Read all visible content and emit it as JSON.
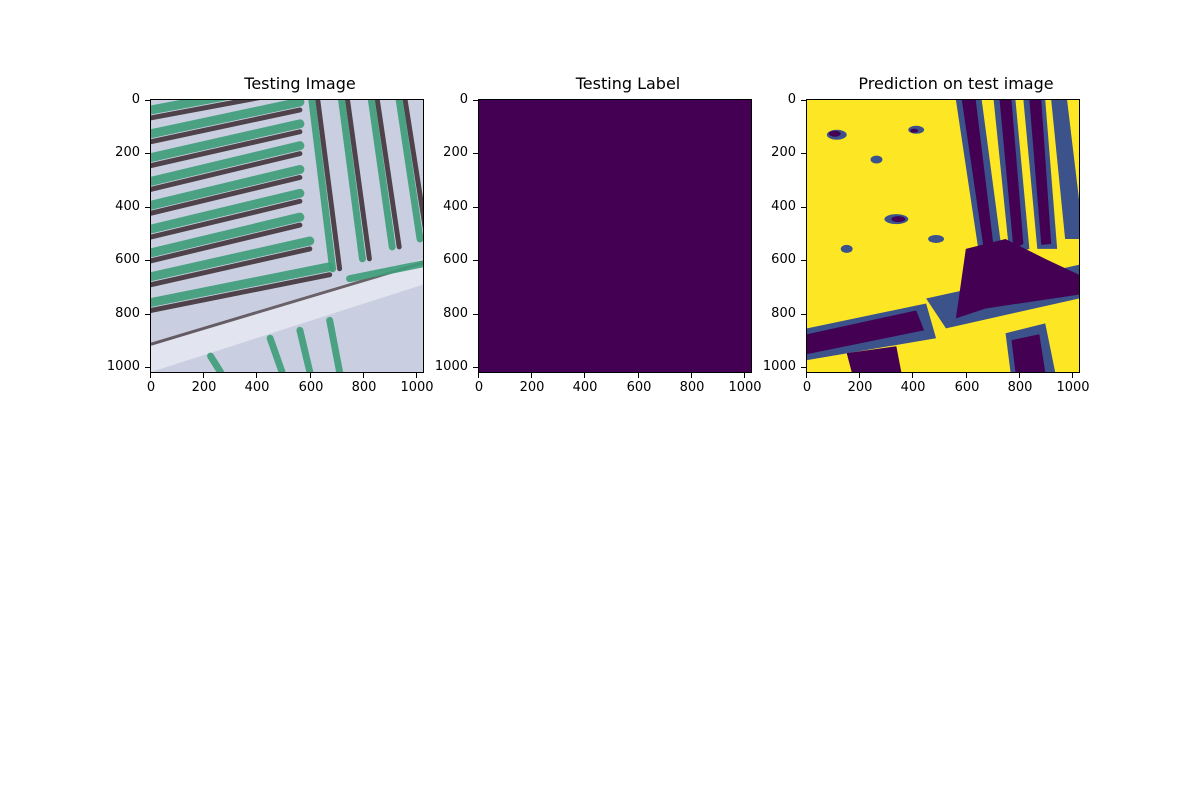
{
  "panels": [
    {
      "title": "Testing Image",
      "kind": "photo",
      "yticks": [
        "0",
        "200",
        "400",
        "600",
        "800",
        "1000"
      ],
      "xticks": [
        "0",
        "200",
        "400",
        "600",
        "800",
        "1000"
      ]
    },
    {
      "title": "Testing Label",
      "kind": "solid",
      "fill": "#440154",
      "yticks": [
        "0",
        "200",
        "400",
        "600",
        "800",
        "1000"
      ],
      "xticks": [
        "0",
        "200",
        "400",
        "600",
        "800",
        "1000"
      ]
    },
    {
      "title": "Prediction on test image",
      "kind": "segmentation",
      "yticks": [
        "0",
        "200",
        "400",
        "600",
        "800",
        "1000"
      ],
      "xticks": [
        "0",
        "200",
        "400",
        "600",
        "800",
        "1000"
      ]
    }
  ],
  "colors": {
    "viridis_low": "#440154",
    "viridis_mid": "#3b528b",
    "viridis_high": "#fde725",
    "soil": "#c9cfe0",
    "crop": "#3e9e7a",
    "shadow": "#3a2a30"
  }
}
